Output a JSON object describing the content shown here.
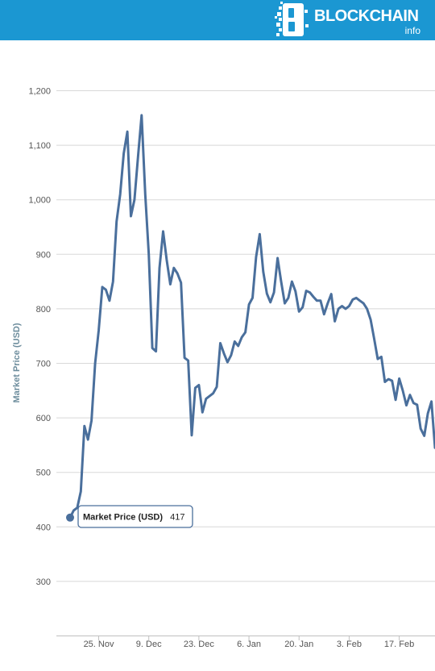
{
  "header": {
    "brand": "BLOCKCHAIN",
    "brand_sub": "info",
    "bg_color": "#1b97d2"
  },
  "chart_data": {
    "type": "line",
    "ylabel": "Market Price (USD)",
    "xlabel": "",
    "ylim": [
      200,
      1250
    ],
    "y_ticks": [
      300,
      400,
      500,
      600,
      700,
      800,
      900,
      1000,
      1100,
      1200
    ],
    "x_ticks": [
      "25. Nov",
      "9. Dec",
      "23. Dec",
      "6. Jan",
      "20. Jan",
      "3. Feb",
      "17. Feb"
    ],
    "x_tick_index": [
      8,
      22,
      36,
      50,
      64,
      78,
      92
    ],
    "grid": true,
    "line_color": "#4a6f9c",
    "tooltip": {
      "label": "Market Price (USD)",
      "value": "417",
      "index": 0
    },
    "series": [
      {
        "values": [
          417,
          430,
          435,
          465,
          585,
          560,
          595,
          700,
          760,
          840,
          835,
          815,
          850,
          960,
          1010,
          1085,
          1125,
          970,
          1000,
          1080,
          1155,
          1010,
          900,
          728,
          722,
          875,
          942,
          890,
          845,
          875,
          865,
          848,
          710,
          705,
          568,
          655,
          660,
          610,
          635,
          640,
          645,
          657,
          737,
          718,
          702,
          715,
          740,
          732,
          748,
          757,
          808,
          820,
          895,
          937,
          868,
          828,
          812,
          830,
          893,
          850,
          810,
          820,
          850,
          832,
          795,
          803,
          833,
          830,
          822,
          815,
          815,
          790,
          810,
          827,
          777,
          800,
          805,
          800,
          805,
          817,
          820,
          815,
          810,
          800,
          780,
          745,
          708,
          712,
          666,
          671,
          668,
          633,
          672,
          650,
          623,
          642,
          627,
          624,
          580,
          567,
          608,
          630,
          545
        ]
      }
    ]
  }
}
